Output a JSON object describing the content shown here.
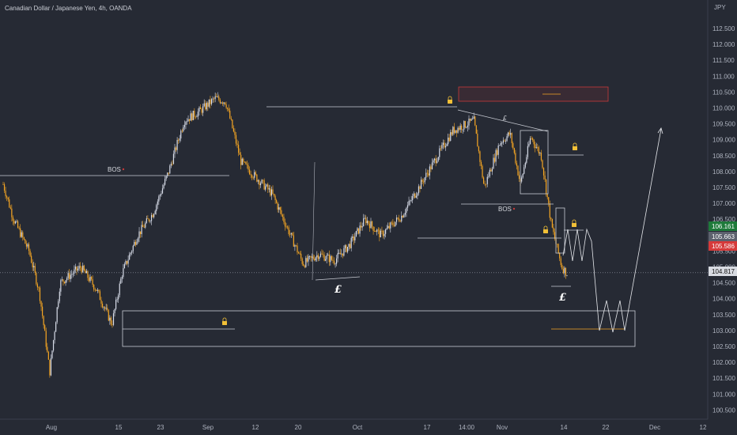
{
  "title": "Canadian Dollar / Japanese Yen, 4h, OANDA",
  "colors": {
    "background": "#262a34",
    "up": "#d7dce8",
    "down": "#f5a623",
    "drawing": "#c9ccd4",
    "resistance_zone": "#c83a3a",
    "lock": "#f2c037",
    "label_green": "#1e7a3a",
    "label_gray": "#5c616d",
    "label_red": "#d53a3a"
  },
  "chart_data": {
    "type": "candlestick",
    "title": "Canadian Dollar / Japanese Yen, 4h, OANDA",
    "y_axis_unit": "JPY",
    "ylim": [
      100.3,
      112.8
    ],
    "y_ticks": [
      "100.500",
      "101.000",
      "101.500",
      "102.000",
      "102.500",
      "103.000",
      "103.500",
      "104.000",
      "104.500",
      "105.000",
      "105.500",
      "106.000",
      "106.500",
      "107.000",
      "107.500",
      "108.000",
      "108.500",
      "109.000",
      "109.500",
      "110.000",
      "110.500",
      "111.000",
      "111.500",
      "112.000",
      "112.500"
    ],
    "x_ticks": [
      "Aug",
      "15",
      "23",
      "Sep",
      "12",
      "20",
      "Oct",
      "17",
      "14:00",
      "Nov",
      "14",
      "22",
      "Dec",
      "12"
    ],
    "price_path": [
      [
        "Aug 1",
        107.6
      ],
      [
        "Aug 3",
        106.5
      ],
      [
        "Aug 6",
        105.5
      ],
      [
        "Aug 8",
        104.2
      ],
      [
        "Aug 10",
        101.7
      ],
      [
        "Aug 12",
        104.5
      ],
      [
        "Aug 16",
        105.0
      ],
      [
        "Aug 19",
        104.3
      ],
      [
        "Aug 22",
        103.2
      ],
      [
        "Aug 24",
        104.8
      ],
      [
        "Aug 27",
        106.0
      ],
      [
        "Aug 30",
        106.7
      ],
      [
        "Sep 2",
        108.0
      ],
      [
        "Sep 5",
        109.6
      ],
      [
        "Sep 8",
        109.9
      ],
      [
        "Sep 11",
        110.3
      ],
      [
        "Sep 13",
        110.2
      ],
      [
        "Sep 16",
        108.3
      ],
      [
        "Sep 19",
        107.8
      ],
      [
        "Sep 22",
        107.3
      ],
      [
        "Sep 25",
        106.2
      ],
      [
        "Sep 28",
        105.1
      ],
      [
        "Oct 1",
        105.4
      ],
      [
        "Oct 4",
        105.2
      ],
      [
        "Oct 7",
        105.7
      ],
      [
        "Oct 10",
        106.5
      ],
      [
        "Oct 13",
        106.0
      ],
      [
        "Oct 17",
        106.6
      ],
      [
        "Oct 20",
        107.4
      ],
      [
        "Oct 24",
        108.5
      ],
      [
        "Oct 27",
        109.3
      ],
      [
        "Oct 31",
        109.6
      ],
      [
        "Nov 2",
        107.5
      ],
      [
        "Nov 5",
        108.9
      ],
      [
        "Nov 7",
        109.2
      ],
      [
        "Nov 9",
        107.6
      ],
      [
        "Nov 11",
        109.1
      ],
      [
        "Nov 13",
        108.5
      ],
      [
        "Nov 15",
        106.3
      ],
      [
        "Nov 17",
        105.0
      ],
      [
        "Nov 18",
        104.8
      ]
    ],
    "price_labels": [
      {
        "text": "106.161",
        "color": "#1e7a3a",
        "value": 106.161
      },
      {
        "text": "105.663",
        "color": "#5c616d",
        "value": 105.663
      },
      {
        "text": "105.586",
        "color": "#d53a3a",
        "value": 105.586
      },
      {
        "text": "104.817",
        "color": "#d8dbe2",
        "value": 104.817
      }
    ],
    "annotations": {
      "bos_1": "BOS",
      "bos_2": "BOS",
      "liquidity": [
        "£",
        "£",
        "£"
      ]
    }
  }
}
